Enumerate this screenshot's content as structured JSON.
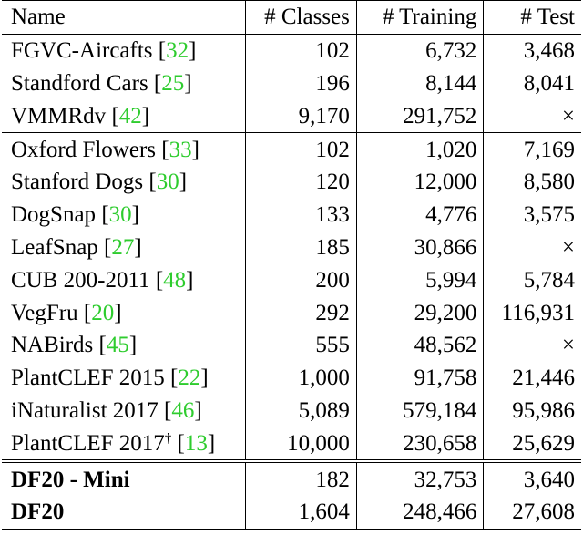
{
  "header": {
    "name": "Name",
    "classes": "# Classes",
    "training": "# Training",
    "test": "# Test"
  },
  "rows": [
    {
      "name": "FGVC-Aircafts",
      "cite": "32",
      "classes": "102",
      "training": "6,732",
      "test": "3,468"
    },
    {
      "name": "Standford Cars",
      "cite": "25",
      "classes": "196",
      "training": "8,144",
      "test": "8,041"
    },
    {
      "name": "VMMRdv",
      "cite": "42",
      "classes": "9,170",
      "training": "291,752",
      "test": "×"
    },
    {
      "name": "Oxford Flowers",
      "cite": "33",
      "classes": "102",
      "training": "1,020",
      "test": "7,169"
    },
    {
      "name": "Stanford Dogs",
      "cite": "30",
      "classes": "120",
      "training": "12,000",
      "test": "8,580"
    },
    {
      "name": "DogSnap",
      "cite": "30",
      "classes": "133",
      "training": "4,776",
      "test": "3,575"
    },
    {
      "name": "LeafSnap",
      "cite": "27",
      "classes": "185",
      "training": "30,866",
      "test": "×"
    },
    {
      "name": "CUB 200-2011",
      "cite": "48",
      "classes": "200",
      "training": "5,994",
      "test": "5,784"
    },
    {
      "name": "VegFru",
      "cite": "20",
      "classes": "292",
      "training": "29,200",
      "test": "116,931"
    },
    {
      "name": "NABirds",
      "cite": "45",
      "classes": "555",
      "training": "48,562",
      "test": "×"
    },
    {
      "name": "PlantCLEF 2015",
      "cite": "22",
      "classes": "1,000",
      "training": "91,758",
      "test": "21,446"
    },
    {
      "name": "iNaturalist 2017",
      "cite": "46",
      "classes": "5,089",
      "training": "579,184",
      "test": "95,986"
    },
    {
      "name": "PlantCLEF 2017",
      "sup": "†",
      "cite": "13",
      "classes": "10,000",
      "training": "230,658",
      "test": "25,629"
    },
    {
      "name": "DF20 - Mini",
      "classes": "182",
      "training": "32,753",
      "test": "3,640"
    },
    {
      "name": "DF20",
      "classes": "1,604",
      "training": "248,466",
      "test": "27,608"
    }
  ]
}
